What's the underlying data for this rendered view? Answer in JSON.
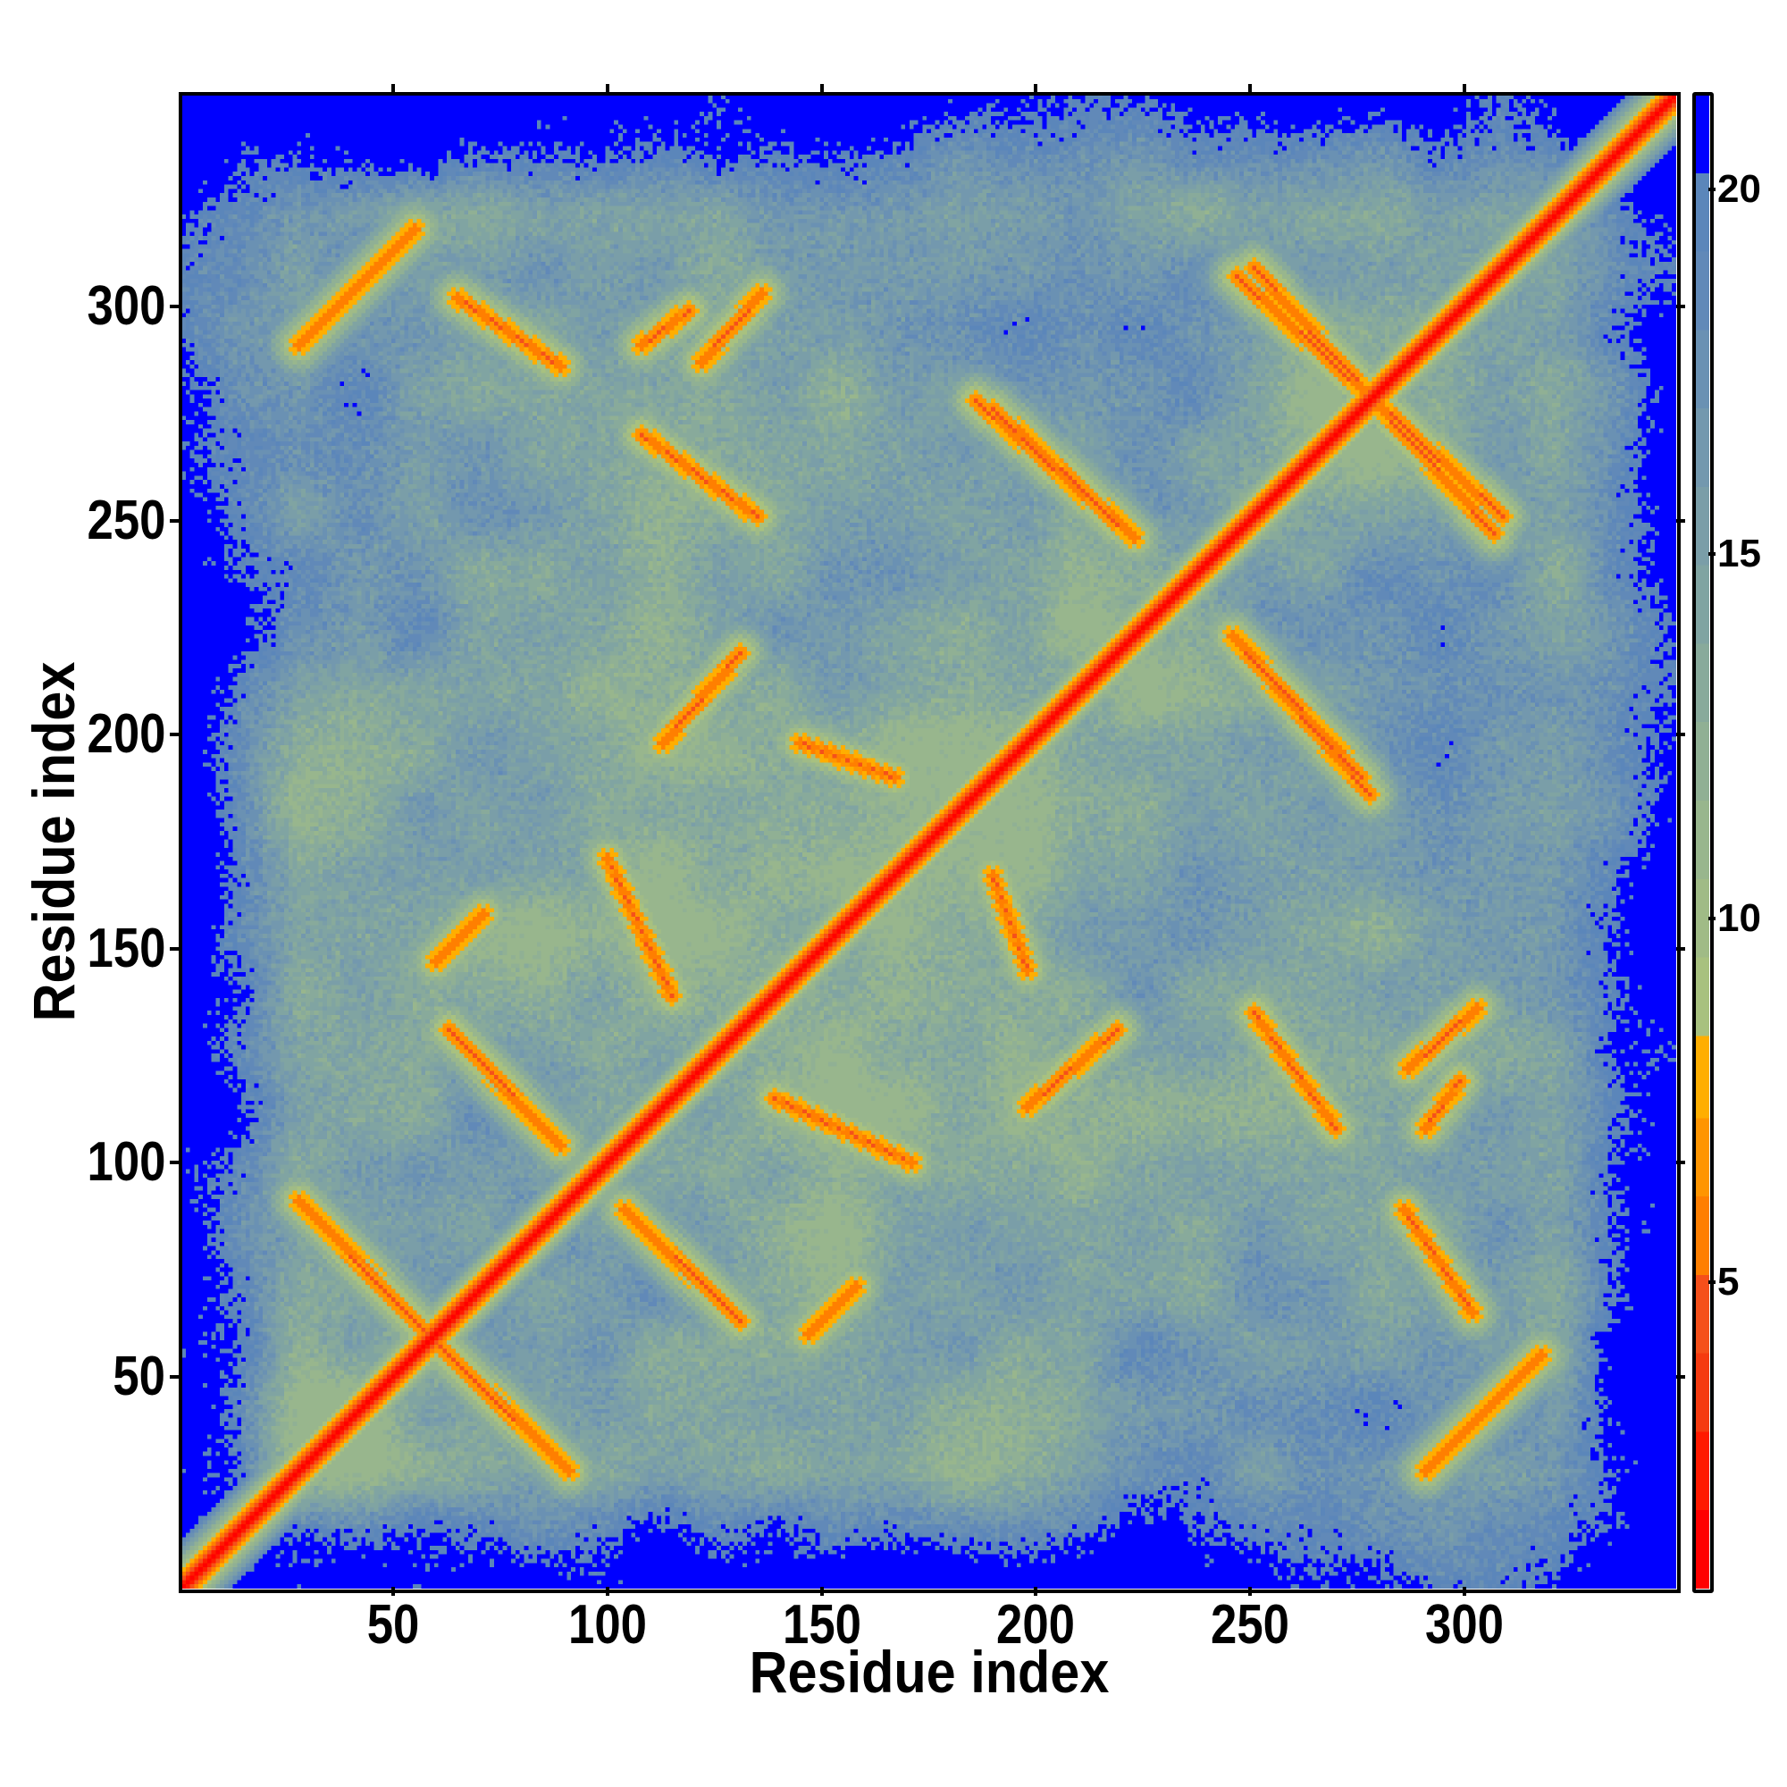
{
  "chart_data": {
    "type": "heatmap",
    "title": "",
    "xlabel": "Residue index",
    "ylabel": "Residue index",
    "n_residues": 349,
    "xlim": [
      0.5,
      349.5
    ],
    "ylim": [
      0.5,
      349.5
    ],
    "x_ticks": [
      50,
      100,
      150,
      200,
      250,
      300
    ],
    "y_ticks": [
      50,
      100,
      150,
      200,
      250,
      300
    ],
    "x_tick_labels": [
      "50",
      "100",
      "150",
      "200",
      "250",
      "300"
    ],
    "y_tick_labels": [
      "50",
      "100",
      "150",
      "200",
      "250",
      "300"
    ],
    "colorbar": {
      "range": [
        0.8,
        21.3
      ],
      "ticks": [
        5,
        10,
        15,
        20
      ],
      "tick_labels": [
        "5",
        "10",
        "15",
        "20"
      ],
      "breaks": [
        0.8,
        1.88,
        2.96,
        4.04,
        5.12,
        6.2,
        7.28,
        8.36,
        9.44,
        10.52,
        11.6,
        12.68,
        13.76,
        14.84,
        15.92,
        17.0,
        18.08,
        19.16,
        20.2,
        21.3
      ],
      "colors": [
        "#ff0000",
        "#ff1a00",
        "#f53b10",
        "#f5501a",
        "#ff7f00",
        "#ff9500",
        "#ffae00",
        "#a8c17f",
        "#a0bb86",
        "#98b68d",
        "#90b094",
        "#88aa9b",
        "#80a4a2",
        "#7a9ea8",
        "#7398ae",
        "#6a91b3",
        "#6189b8",
        "#5b86ba",
        "#0000ff"
      ]
    },
    "contact_bands": [
      {
        "from": [
          28,
          291
        ],
        "to": [
          55,
          318
        ]
      },
      {
        "from": [
          65,
          302
        ],
        "to": [
          89,
          286
        ]
      },
      {
        "from": [
          108,
          291
        ],
        "to": [
          119,
          299
        ]
      },
      {
        "from": [
          108,
          270
        ],
        "to": [
          135,
          251
        ]
      },
      {
        "from": [
          113,
          198
        ],
        "to": [
          131,
          219
        ]
      },
      {
        "from": [
          60,
          147
        ],
        "to": [
          71,
          158
        ]
      },
      {
        "from": [
          63,
          131
        ],
        "to": [
          89,
          104
        ]
      },
      {
        "from": [
          28,
          91
        ],
        "to": [
          57,
          61
        ]
      },
      {
        "from": [
          100,
          171
        ],
        "to": [
          115,
          139
        ]
      },
      {
        "from": [
          186,
          278
        ],
        "to": [
          223,
          246
        ]
      },
      {
        "from": [
          247,
          307
        ],
        "to": [
          309,
          251
        ]
      },
      {
        "from": [
          247,
          222
        ],
        "to": [
          276,
          190
        ]
      },
      {
        "from": [
          122,
          287
        ],
        "to": [
          136,
          303
        ]
      },
      {
        "from": [
          145,
          198
        ],
        "to": [
          167,
          190
        ]
      }
    ]
  }
}
